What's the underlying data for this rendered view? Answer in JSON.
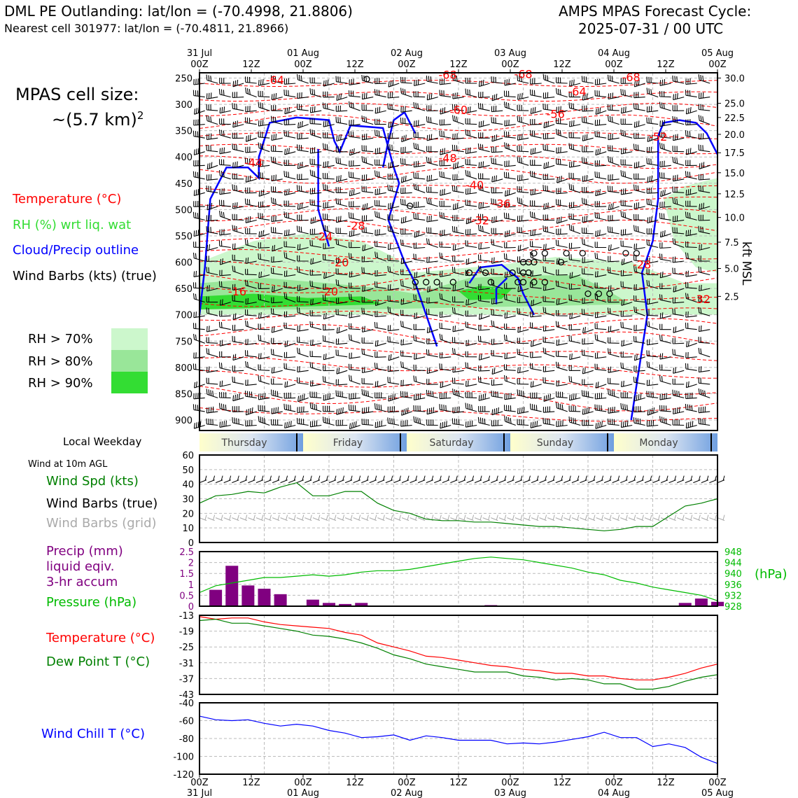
{
  "header": {
    "title_left": "DML PE Outlanding: lat/lon = (-70.4998, 21.8806)",
    "subtitle_left": "Nearest cell 301977: lat/lon = (-70.4811, 21.8966)",
    "title_right_line1": "AMPS MPAS Forecast Cycle:",
    "title_right_line2": "2025-07-31 / 00 UTC"
  },
  "cell_size": {
    "label": "MPAS cell size:",
    "value": "~(5.7 km)",
    "exponent": "2"
  },
  "legend": {
    "temperature": "Temperature (°C)",
    "rh": "RH (%) wrt liq. wat",
    "cloud": "Cloud/Precip outline",
    "wind": "Wind Barbs (kts) (true)",
    "rh70": "RH > 70%",
    "rh80": "RH > 80%",
    "rh90": "RH > 90%"
  },
  "colors": {
    "temperature": "#ff0000",
    "rh_label": "#33dd33",
    "cloud": "#0000ff",
    "rh70": "#ccf7cc",
    "rh80": "#99e699",
    "rh90": "#33dd33",
    "wind_speed": "#008000",
    "wind_grid": "#aaaaaa",
    "precip": "#800080",
    "pressure": "#00bb00",
    "dewpoint": "#008000",
    "windchill": "#0000ff"
  },
  "time_axis": {
    "top_labels": [
      {
        "line1": "31 Jul",
        "line2": "00Z"
      },
      {
        "line1": "",
        "line2": "12Z"
      },
      {
        "line1": "01 Aug",
        "line2": "00Z"
      },
      {
        "line1": "",
        "line2": "12Z"
      },
      {
        "line1": "02 Aug",
        "line2": "00Z"
      },
      {
        "line1": "",
        "line2": "12Z"
      },
      {
        "line1": "03 Aug",
        "line2": "00Z"
      },
      {
        "line1": "",
        "line2": "12Z"
      },
      {
        "line1": "04 Aug",
        "line2": "00Z"
      },
      {
        "line1": "",
        "line2": "12Z"
      },
      {
        "line1": "05 Aug",
        "line2": "00Z"
      }
    ],
    "bottom_labels": [
      {
        "line1": "00Z",
        "line2": "31 Jul"
      },
      {
        "line1": "12Z",
        "line2": ""
      },
      {
        "line1": "00Z",
        "line2": "01 Aug"
      },
      {
        "line1": "12Z",
        "line2": ""
      },
      {
        "line1": "00Z",
        "line2": "02 Aug"
      },
      {
        "line1": "12Z",
        "line2": ""
      },
      {
        "line1": "00Z",
        "line2": "03 Aug"
      },
      {
        "line1": "12Z",
        "line2": ""
      },
      {
        "line1": "00Z",
        "line2": "04 Aug"
      },
      {
        "line1": "12Z",
        "line2": ""
      },
      {
        "line1": "00Z",
        "line2": "05 Aug"
      }
    ]
  },
  "weekday_strip": {
    "label": "Local Weekday",
    "days": [
      "Thursday",
      "Friday",
      "Saturday",
      "Sunday",
      "Monday"
    ]
  },
  "panel_labels": {
    "wind10m": "Wind at 10m AGL",
    "wind_speed": "Wind Spd (kts)",
    "wind_barbs_true": "Wind Barbs (true)",
    "wind_barbs_grid": "Wind Barbs (grid)",
    "precip1": "Precip (mm)",
    "precip2": "liquid eqiv.",
    "precip3": "3-hr accum",
    "pressure": "Pressure (hPa)",
    "pressure_unit": "(hPa)",
    "temperature": "Temperature (°C)",
    "dewpoint": "Dew Point T (°C)",
    "windchill": "Wind Chill T (°C)",
    "kft": "kft MSL"
  },
  "chart_data": [
    {
      "type": "heatmap",
      "title": "",
      "description_series": [
        "Temperature (°C)",
        "RH (%) wrt liq. wat",
        "Cloud/Precip outline",
        "Wind Barbs (kts) (true)"
      ],
      "x_hours": [
        0,
        96
      ],
      "y_pressure_ticks": [
        250,
        300,
        350,
        400,
        450,
        500,
        550,
        600,
        650,
        700,
        750,
        800,
        850,
        900
      ],
      "ylim_hpa": [
        920,
        240
      ],
      "right_axis_kft": [
        {
          "kft": "30.0",
          "hpa": 250
        },
        {
          "kft": "25.0",
          "hpa": 298
        },
        {
          "kft": "22.5",
          "hpa": 325
        },
        {
          "kft": "20.0",
          "hpa": 357
        },
        {
          "kft": "17.5",
          "hpa": 392
        },
        {
          "kft": "15.0",
          "hpa": 430
        },
        {
          "kft": "12.5",
          "hpa": 470
        },
        {
          "kft": "10.0",
          "hpa": 515
        },
        {
          "kft": "7.5",
          "hpa": 562
        },
        {
          "kft": "5.0",
          "hpa": 612
        },
        {
          "kft": "2.5",
          "hpa": 665
        }
      ],
      "temperature_labels": [
        {
          "text": "-68",
          "hour": 46,
          "hpa": 243
        },
        {
          "text": "-68",
          "hour": 60,
          "hpa": 242
        },
        {
          "text": "-68",
          "hour": 80,
          "hpa": 248
        },
        {
          "text": "-64",
          "hour": 14,
          "hpa": 253
        },
        {
          "text": "-64",
          "hour": 70,
          "hpa": 275
        },
        {
          "text": "-60",
          "hour": 48,
          "hpa": 310
        },
        {
          "text": "-56",
          "hour": 66,
          "hpa": 318
        },
        {
          "text": "-52",
          "hour": 85,
          "hpa": 361
        },
        {
          "text": "-48",
          "hour": 46,
          "hpa": 402
        },
        {
          "text": "-44",
          "hour": 10,
          "hpa": 410
        },
        {
          "text": "-40",
          "hour": 51,
          "hpa": 453
        },
        {
          "text": "-36",
          "hour": 56,
          "hpa": 488
        },
        {
          "text": "-32",
          "hour": 52,
          "hpa": 520
        },
        {
          "text": "-28",
          "hour": 29,
          "hpa": 530
        },
        {
          "text": "-24",
          "hour": 23,
          "hpa": 551
        },
        {
          "text": "-20",
          "hour": 26,
          "hpa": 600
        },
        {
          "text": "-28",
          "hour": 82,
          "hpa": 604
        },
        {
          "text": "-16",
          "hour": 7,
          "hpa": 655
        },
        {
          "text": "-20",
          "hour": 24,
          "hpa": 655
        },
        {
          "text": "-32",
          "hour": 93,
          "hpa": 670
        }
      ],
      "circle_markers": [
        {
          "hour": 31,
          "hpa": 252
        },
        {
          "hour": 39,
          "hpa": 493
        },
        {
          "hour": 62,
          "hpa": 583
        },
        {
          "hour": 64,
          "hpa": 583
        },
        {
          "hour": 68,
          "hpa": 583
        },
        {
          "hour": 71,
          "hpa": 583
        },
        {
          "hour": 79,
          "hpa": 583
        },
        {
          "hour": 81,
          "hpa": 583
        },
        {
          "hour": 60,
          "hpa": 600
        },
        {
          "hour": 61,
          "hpa": 600
        },
        {
          "hour": 62,
          "hpa": 600
        },
        {
          "hour": 67,
          "hpa": 600
        },
        {
          "hour": 50,
          "hpa": 620
        },
        {
          "hour": 53,
          "hpa": 620
        },
        {
          "hour": 58,
          "hpa": 620
        },
        {
          "hour": 60,
          "hpa": 620
        },
        {
          "hour": 61,
          "hpa": 620
        },
        {
          "hour": 40,
          "hpa": 638
        },
        {
          "hour": 42,
          "hpa": 638
        },
        {
          "hour": 44,
          "hpa": 638
        },
        {
          "hour": 47,
          "hpa": 638
        },
        {
          "hour": 54,
          "hpa": 638
        },
        {
          "hour": 59,
          "hpa": 638
        },
        {
          "hour": 60,
          "hpa": 638
        },
        {
          "hour": 62,
          "hpa": 638
        },
        {
          "hour": 64,
          "hpa": 638
        },
        {
          "hour": 72,
          "hpa": 660
        },
        {
          "hour": 74,
          "hpa": 660
        },
        {
          "hour": 76,
          "hpa": 660
        }
      ]
    },
    {
      "type": "line",
      "title": "",
      "x_hours_step": 3,
      "ylabel": "Wind Spd (kts)",
      "ylim": [
        0,
        60
      ],
      "yticks": [
        0,
        10,
        20,
        30,
        40,
        50,
        60
      ],
      "series": [
        {
          "name": "Wind Spd (kts)",
          "values": [
            27,
            32,
            33,
            35,
            34,
            38,
            41,
            32,
            32,
            35,
            35,
            27,
            22,
            20,
            16,
            15,
            15,
            14,
            14,
            13,
            12,
            11,
            11,
            10,
            9,
            8,
            9,
            11,
            11,
            18,
            25,
            27,
            30
          ]
        }
      ]
    },
    {
      "type": "bar",
      "title": "",
      "x_hours_step": 3,
      "ylabel": "Precip (mm)",
      "ylim": [
        0,
        2.5
      ],
      "yticks": [
        0,
        0.5,
        1.0,
        1.5,
        2.0,
        2.5
      ],
      "values": [
        0,
        0.75,
        1.85,
        0.95,
        0.8,
        0.55,
        0,
        0.3,
        0.15,
        0.1,
        0.15,
        0,
        0,
        0,
        0,
        0,
        0,
        0,
        0.05,
        0,
        0,
        0,
        0,
        0,
        0,
        0,
        0,
        0,
        0,
        0,
        0.15,
        0.35,
        0.2
      ],
      "pressure_series": {
        "name": "Pressure (hPa)",
        "ylim": [
          928,
          948
        ],
        "yticks": [
          928,
          932,
          936,
          940,
          944,
          948
        ],
        "values": [
          933,
          935.5,
          936.5,
          937.5,
          938.5,
          938.5,
          939,
          939.5,
          939,
          939.5,
          940.5,
          941,
          941,
          941.5,
          942.5,
          943.5,
          944.5,
          945.5,
          946,
          945.5,
          945,
          944,
          943,
          942,
          940.5,
          939.5,
          937.5,
          936.5,
          935,
          934,
          933,
          932,
          930
        ]
      }
    },
    {
      "type": "line",
      "title": "",
      "x_hours_step": 3,
      "ylim": [
        -43,
        -13
      ],
      "yticks": [
        -13,
        -19,
        -25,
        -31,
        -37,
        -43
      ],
      "series": [
        {
          "name": "Temperature (°C)",
          "values": [
            -13.5,
            -14.5,
            -14,
            -14,
            -15.5,
            -16.5,
            -17,
            -17.5,
            -18,
            -19.5,
            -20.5,
            -23.5,
            -25,
            -26.5,
            -28.5,
            -29,
            -30,
            -31,
            -32,
            -32.5,
            -33.5,
            -34,
            -35,
            -35,
            -36,
            -36,
            -37,
            -37.5,
            -37.5,
            -36.5,
            -35,
            -33,
            -31.5
          ]
        },
        {
          "name": "Dew Point T (°C)",
          "values": [
            -15,
            -14.5,
            -16,
            -16,
            -17,
            -18,
            -19,
            -20.5,
            -21,
            -22,
            -23.5,
            -25.5,
            -28,
            -29.5,
            -31.5,
            -32.5,
            -33.5,
            -34.5,
            -34.5,
            -34.5,
            -36,
            -36.5,
            -37.5,
            -37,
            -37.5,
            -39,
            -39,
            -41,
            -41,
            -40,
            -38,
            -36.5,
            -35.5
          ]
        }
      ]
    },
    {
      "type": "line",
      "title": "",
      "x_hours_step": 3,
      "ylim": [
        -120,
        -40
      ],
      "yticks": [
        -40,
        -60,
        -80,
        -100,
        -120
      ],
      "series": [
        {
          "name": "Wind Chill T (°C)",
          "values": [
            -55,
            -59,
            -60,
            -59,
            -63,
            -66,
            -64,
            -66,
            -71,
            -74,
            -79,
            -78,
            -76,
            -82,
            -77,
            -79,
            -82,
            -82,
            -82,
            -86,
            -85,
            -86,
            -84,
            -81,
            -78,
            -73,
            -79,
            -79,
            -89,
            -86,
            -90,
            -101,
            -108
          ]
        }
      ]
    }
  ]
}
